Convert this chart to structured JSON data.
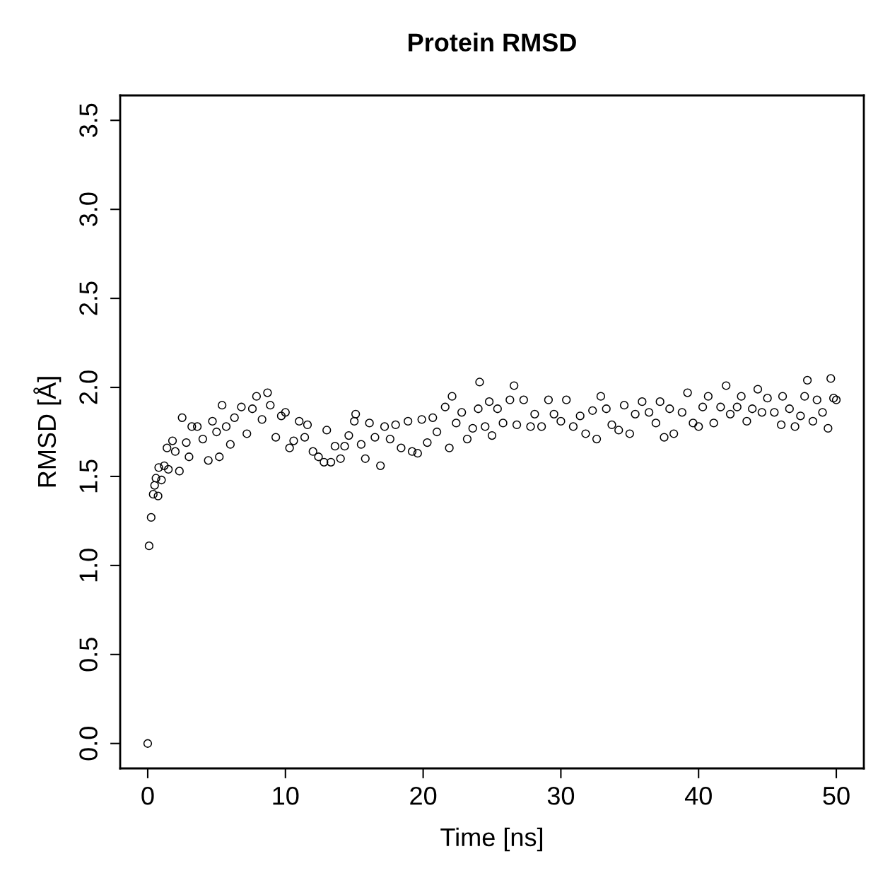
{
  "chart_data": {
    "type": "scatter",
    "title": "Protein RMSD",
    "xlabel": "Time [ns]",
    "ylabel": "RMSD [Å]",
    "x": [
      0,
      0.1,
      0.25,
      0.4,
      0.5,
      0.6,
      0.75,
      0.8,
      1.0,
      1.2,
      1.4,
      1.5,
      1.8,
      2.0,
      2.3,
      2.5,
      2.8,
      3.0,
      3.2,
      3.6,
      4.0,
      4.4,
      4.7,
      5.0,
      5.2,
      5.4,
      5.7,
      6.0,
      6.3,
      6.8,
      7.2,
      7.6,
      7.9,
      8.3,
      8.7,
      8.9,
      9.3,
      9.7,
      10.0,
      10.3,
      10.6,
      11.0,
      11.4,
      11.6,
      12.0,
      12.4,
      12.8,
      13.0,
      13.3,
      13.6,
      14.0,
      14.3,
      14.6,
      15.0,
      15.1,
      15.5,
      15.8,
      16.1,
      16.5,
      16.9,
      17.2,
      17.6,
      18.0,
      18.4,
      18.9,
      19.2,
      19.6,
      19.9,
      20.3,
      20.7,
      21.0,
      21.6,
      21.9,
      22.1,
      22.4,
      22.8,
      23.2,
      23.6,
      24.0,
      24.1,
      24.5,
      24.8,
      25.0,
      25.4,
      25.8,
      26.3,
      26.6,
      26.8,
      27.3,
      27.8,
      28.1,
      28.6,
      29.1,
      29.5,
      30.0,
      30.4,
      30.9,
      31.4,
      31.8,
      32.3,
      32.6,
      32.9,
      33.3,
      33.7,
      34.2,
      34.6,
      35.0,
      35.4,
      35.9,
      36.4,
      36.9,
      37.2,
      37.5,
      37.9,
      38.2,
      38.8,
      39.2,
      39.6,
      40.0,
      40.3,
      40.7,
      41.1,
      41.6,
      42.0,
      42.3,
      42.8,
      43.1,
      43.5,
      43.9,
      44.3,
      44.6,
      45.0,
      45.5,
      46.0,
      46.1,
      46.6,
      47.0,
      47.4,
      47.7,
      47.9,
      48.3,
      48.6,
      49.0,
      49.4,
      49.6,
      49.8,
      50.0
    ],
    "series": [
      {
        "color": "#000000",
        "values": [
          0,
          1.11,
          1.27,
          1.4,
          1.45,
          1.49,
          1.39,
          1.55,
          1.48,
          1.56,
          1.66,
          1.54,
          1.7,
          1.64,
          1.53,
          1.83,
          1.69,
          1.61,
          1.78,
          1.78,
          1.71,
          1.59,
          1.81,
          1.75,
          1.61,
          1.9,
          1.78,
          1.68,
          1.83,
          1.89,
          1.74,
          1.88,
          1.95,
          1.82,
          1.97,
          1.9,
          1.72,
          1.84,
          1.86,
          1.66,
          1.7,
          1.81,
          1.72,
          1.79,
          1.64,
          1.61,
          1.58,
          1.76,
          1.58,
          1.67,
          1.6,
          1.67,
          1.73,
          1.81,
          1.85,
          1.68,
          1.6,
          1.8,
          1.72,
          1.56,
          1.78,
          1.71,
          1.79,
          1.66,
          1.81,
          1.64,
          1.63,
          1.82,
          1.69,
          1.83,
          1.75,
          1.89,
          1.66,
          1.95,
          1.8,
          1.86,
          1.71,
          1.77,
          1.88,
          2.03,
          1.78,
          1.92,
          1.73,
          1.88,
          1.8,
          1.93,
          2.01,
          1.79,
          1.93,
          1.78,
          1.85,
          1.78,
          1.93,
          1.85,
          1.81,
          1.93,
          1.78,
          1.84,
          1.74,
          1.87,
          1.71,
          1.95,
          1.88,
          1.79,
          1.76,
          1.9,
          1.74,
          1.85,
          1.92,
          1.86,
          1.8,
          1.92,
          1.72,
          1.88,
          1.74,
          1.86,
          1.97,
          1.8,
          1.78,
          1.89,
          1.95,
          1.8,
          1.89,
          2.01,
          1.85,
          1.89,
          1.95,
          1.81,
          1.88,
          1.99,
          1.86,
          1.94,
          1.86,
          1.79,
          1.95,
          1.88,
          1.78,
          1.84,
          1.95,
          2.04,
          1.81,
          1.93,
          1.86,
          1.77,
          2.05,
          1.94,
          1.93
        ]
      }
    ],
    "xlim": [
      -2,
      52
    ],
    "ylim": [
      -0.14,
      3.64
    ],
    "xticks": [
      0,
      10,
      20,
      30,
      40,
      50
    ],
    "yticks": [
      {
        "value": 0,
        "label": "0.0"
      },
      {
        "value": 0.5,
        "label": "0.5"
      },
      {
        "value": 1,
        "label": "1.0"
      },
      {
        "value": 1.5,
        "label": "1.5"
      },
      {
        "value": 2,
        "label": "2.0"
      },
      {
        "value": 2.5,
        "label": "2.5"
      },
      {
        "value": 3,
        "label": "3.0"
      },
      {
        "value": 3.5,
        "label": "3.5"
      }
    ],
    "marker": "circle",
    "grid": false,
    "legend": false
  }
}
